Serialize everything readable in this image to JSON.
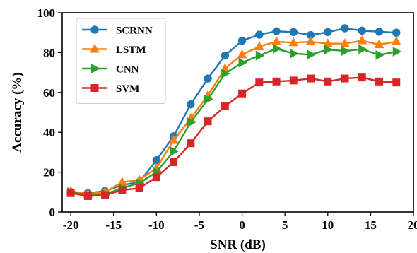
{
  "chart_data": {
    "type": "line",
    "title": "",
    "xlabel": "SNR (dB)",
    "ylabel": "Accuracy (%)",
    "xlim": [
      -21,
      20
    ],
    "ylim": [
      0,
      100
    ],
    "xticks": [
      -20,
      -15,
      -10,
      -5,
      0,
      5,
      10,
      15,
      20
    ],
    "yticks": [
      0,
      20,
      40,
      60,
      80,
      100
    ],
    "grid": false,
    "legend_position": "top-left",
    "x": [
      -20,
      -18,
      -16,
      -14,
      -12,
      -10,
      -8,
      -6,
      -4,
      -2,
      0,
      2,
      4,
      6,
      8,
      10,
      12,
      14,
      16,
      18
    ],
    "series": [
      {
        "name": "SCRNN",
        "color": "#1f77b4",
        "marker": "circle",
        "values": [
          10,
          9.5,
          10.5,
          13.5,
          15,
          26,
          38,
          54,
          67,
          78.5,
          86,
          89,
          90.7,
          90.3,
          88.8,
          90.3,
          92.2,
          91,
          90.5,
          90
        ]
      },
      {
        "name": "LSTM",
        "color": "#ff7f0e",
        "marker": "triangle-up",
        "values": [
          10.5,
          9,
          10,
          15,
          16,
          22,
          36,
          47,
          58.5,
          72,
          79,
          83,
          85.5,
          85,
          85.5,
          84.5,
          84.5,
          86,
          84,
          85.5
        ]
      },
      {
        "name": "CNN",
        "color": "#2ca02c",
        "marker": "triangle-right",
        "values": [
          10,
          8.5,
          9,
          12,
          14.5,
          20,
          30.5,
          45,
          56.5,
          69.5,
          75,
          78.5,
          82,
          79.5,
          79,
          81.5,
          80.8,
          81.7,
          78.8,
          80.5
        ]
      },
      {
        "name": "SVM",
        "color": "#d62728",
        "marker": "square",
        "values": [
          9.5,
          8,
          8.5,
          11,
          12,
          17.5,
          25,
          34.5,
          45.5,
          53,
          59.5,
          65,
          65.5,
          66,
          67,
          65.5,
          67,
          67.5,
          65.5,
          65
        ]
      }
    ]
  }
}
